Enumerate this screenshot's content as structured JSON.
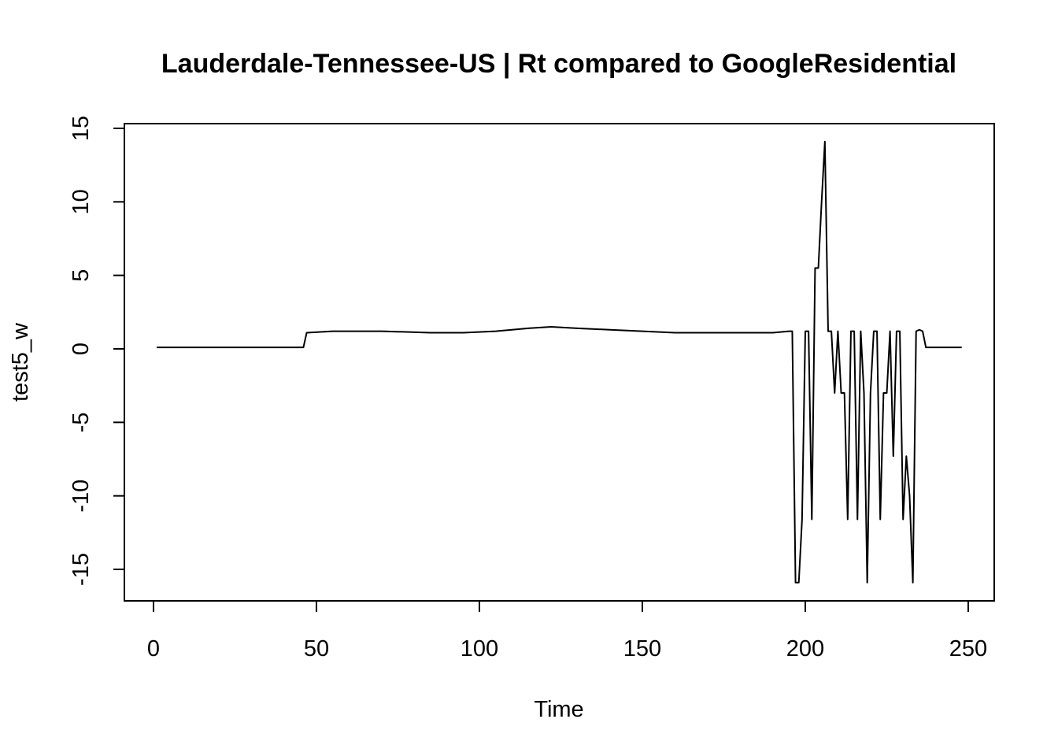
{
  "chart_data": {
    "type": "line",
    "title": "Lauderdale-Tennessee-US | Rt compared to GoogleResidential",
    "xlabel": "Time",
    "ylabel": "test5_w",
    "xlim": [
      0,
      250
    ],
    "ylim": [
      -15,
      15
    ],
    "x_ticks": [
      0,
      50,
      100,
      150,
      200,
      250
    ],
    "y_ticks": [
      -15,
      -10,
      -5,
      0,
      5,
      10,
      15
    ],
    "grid": false,
    "legend": "none",
    "series": [
      {
        "color": "#000000",
        "points": [
          [
            1,
            0.1
          ],
          [
            46,
            0.1
          ],
          [
            47,
            1.1
          ],
          [
            55,
            1.2
          ],
          [
            70,
            1.2
          ],
          [
            85,
            1.1
          ],
          [
            95,
            1.1
          ],
          [
            105,
            1.2
          ],
          [
            115,
            1.4
          ],
          [
            122,
            1.5
          ],
          [
            130,
            1.4
          ],
          [
            140,
            1.3
          ],
          [
            150,
            1.2
          ],
          [
            160,
            1.1
          ],
          [
            175,
            1.1
          ],
          [
            190,
            1.1
          ],
          [
            195,
            1.2
          ],
          [
            196,
            1.2
          ],
          [
            197,
            -15.9
          ],
          [
            198,
            -15.9
          ],
          [
            199,
            -11.6
          ],
          [
            200,
            1.2
          ],
          [
            201,
            1.2
          ],
          [
            202,
            -11.6
          ],
          [
            203,
            5.5
          ],
          [
            204,
            5.5
          ],
          [
            205,
            10.0
          ],
          [
            206,
            14.1
          ],
          [
            207,
            1.2
          ],
          [
            208,
            1.2
          ],
          [
            209,
            -3.0
          ],
          [
            210,
            1.2
          ],
          [
            211,
            -3.0
          ],
          [
            212,
            -3.0
          ],
          [
            213,
            -11.6
          ],
          [
            214,
            1.2
          ],
          [
            215,
            1.2
          ],
          [
            216,
            -11.6
          ],
          [
            217,
            1.2
          ],
          [
            218,
            -3.0
          ],
          [
            219,
            -15.9
          ],
          [
            220,
            -3.0
          ],
          [
            221,
            1.2
          ],
          [
            222,
            1.2
          ],
          [
            223,
            -11.6
          ],
          [
            224,
            -3.0
          ],
          [
            225,
            -3.0
          ],
          [
            226,
            1.2
          ],
          [
            227,
            -7.3
          ],
          [
            228,
            1.2
          ],
          [
            229,
            1.2
          ],
          [
            230,
            -11.6
          ],
          [
            231,
            -7.3
          ],
          [
            232,
            -10.0
          ],
          [
            233,
            -15.9
          ],
          [
            234,
            1.2
          ],
          [
            235,
            1.3
          ],
          [
            236,
            1.2
          ],
          [
            237,
            0.1
          ],
          [
            248,
            0.1
          ]
        ]
      }
    ]
  }
}
